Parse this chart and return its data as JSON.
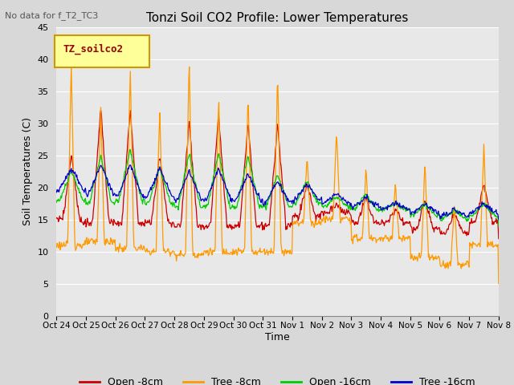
{
  "title": "Tonzi Soil CO2 Profile: Lower Temperatures",
  "subtitle": "No data for f_T2_TC3",
  "ylabel": "Soil Temperatures (C)",
  "xlabel": "Time",
  "legend_label": "TZ_soilco2",
  "ylim": [
    0,
    45
  ],
  "yticks": [
    0,
    5,
    10,
    15,
    20,
    25,
    30,
    35,
    40,
    45
  ],
  "xtick_labels": [
    "Oct 24",
    "Oct 25",
    "Oct 26",
    "Oct 27",
    "Oct 28",
    "Oct 29",
    "Oct 30",
    "Oct 31",
    "Nov 1",
    "Nov 2",
    "Nov 3",
    "Nov 4",
    "Nov 5",
    "Nov 6",
    "Nov 7",
    "Nov 8"
  ],
  "colors": {
    "open_8cm": "#cc0000",
    "tree_8cm": "#ff9900",
    "open_16cm": "#00cc00",
    "tree_16cm": "#0000cc"
  },
  "legend_entries": [
    "Open -8cm",
    "Tree -8cm",
    "Open -16cm",
    "Tree -16cm"
  ],
  "fig_bg_color": "#d8d8d8",
  "plot_bg_color": "#e8e8e8",
  "grid_color": "#ffffff"
}
